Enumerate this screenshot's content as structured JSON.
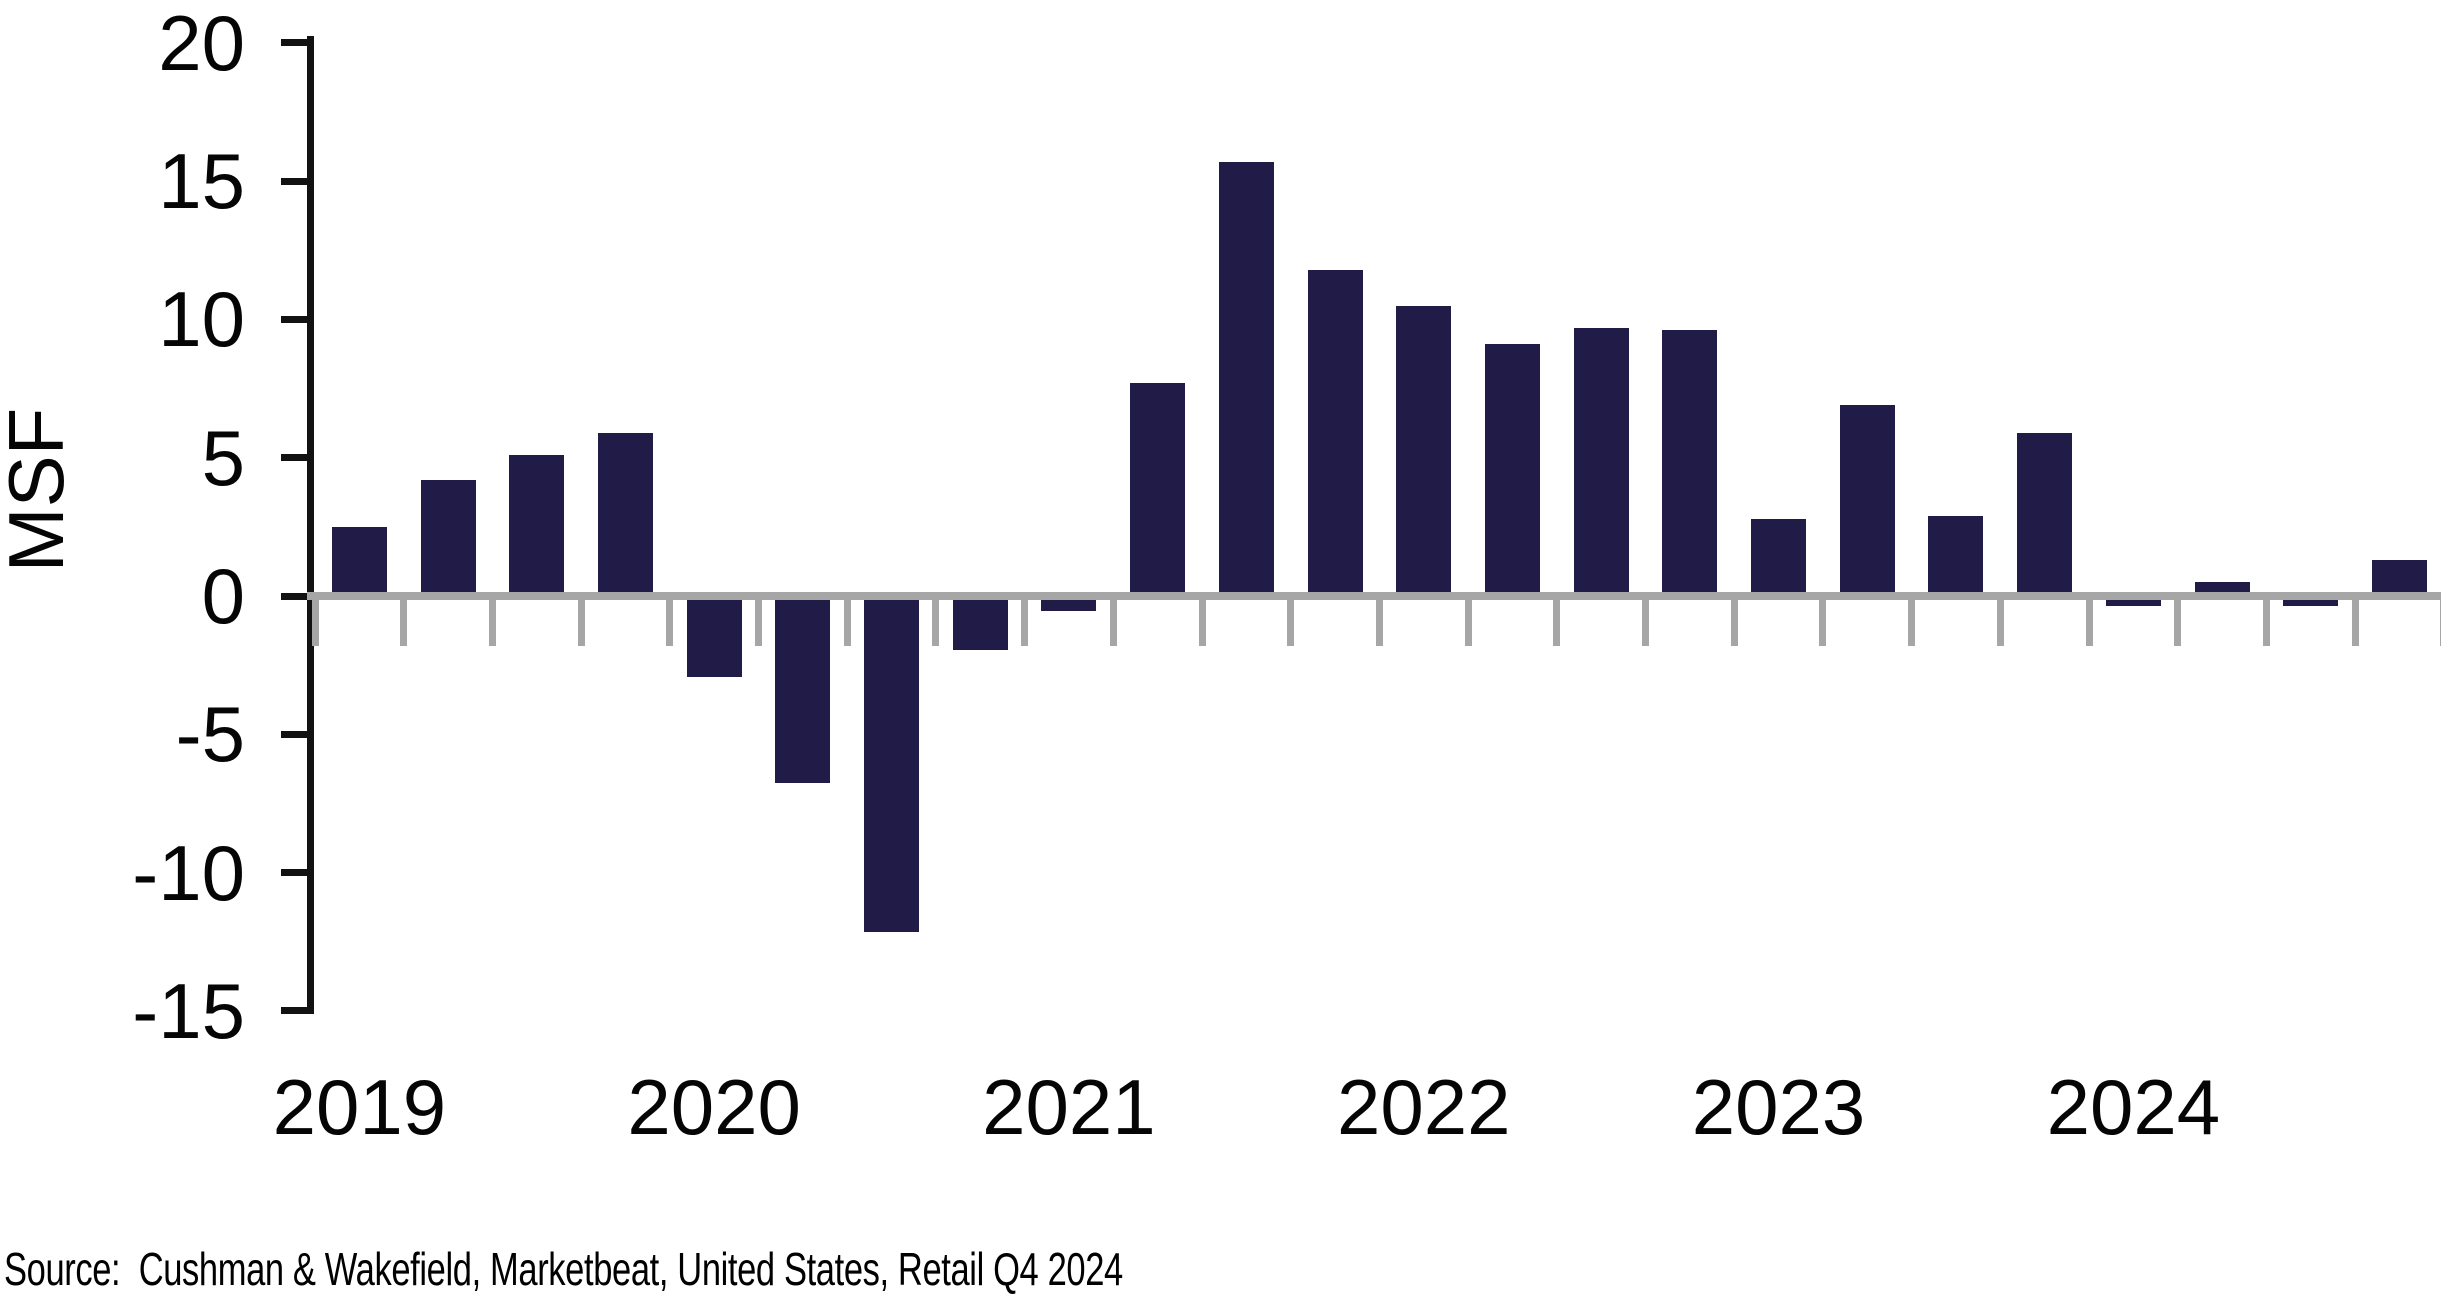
{
  "chart_data": {
    "type": "bar",
    "title": "",
    "ylabel": "MSF",
    "xlabel": "",
    "ylim": [
      -15,
      20
    ],
    "ytick_interval": 5,
    "yticks": [
      20,
      15,
      10,
      5,
      0,
      -5,
      -10,
      -15
    ],
    "grid": "off",
    "legend": "none",
    "years": [
      "2019",
      "2020",
      "2021",
      "2022",
      "2023",
      "2024"
    ],
    "categories": [
      "2019 Q1",
      "2019 Q2",
      "2019 Q3",
      "2019 Q4",
      "2020 Q1",
      "2020 Q2",
      "2020 Q3",
      "2020 Q4",
      "2021 Q1",
      "2021 Q2",
      "2021 Q3",
      "2021 Q4",
      "2022 Q1",
      "2022 Q2",
      "2022 Q3",
      "2022 Q4",
      "2023 Q1",
      "2023 Q2",
      "2023 Q3",
      "2023 Q4",
      "2024 Q1",
      "2024 Q2",
      "2024 Q3",
      "2024 Q4"
    ],
    "values": [
      2.5,
      4.2,
      5.1,
      5.9,
      -2.8,
      -6.6,
      -12.0,
      -1.8,
      -0.4,
      7.7,
      15.7,
      11.8,
      10.5,
      9.1,
      9.7,
      9.6,
      2.8,
      6.9,
      2.9,
      5.9,
      -0.2,
      0.5,
      -0.2,
      1.3
    ],
    "bar_color": "#211b48",
    "axis_line_color": "#121212",
    "zero_line_color": "#a6a6a6",
    "label_color": "#050505"
  },
  "source_line": {
    "text": "Source:  Cushman & Wakefield, Marketbeat, United States, Retail Q4 2024"
  }
}
